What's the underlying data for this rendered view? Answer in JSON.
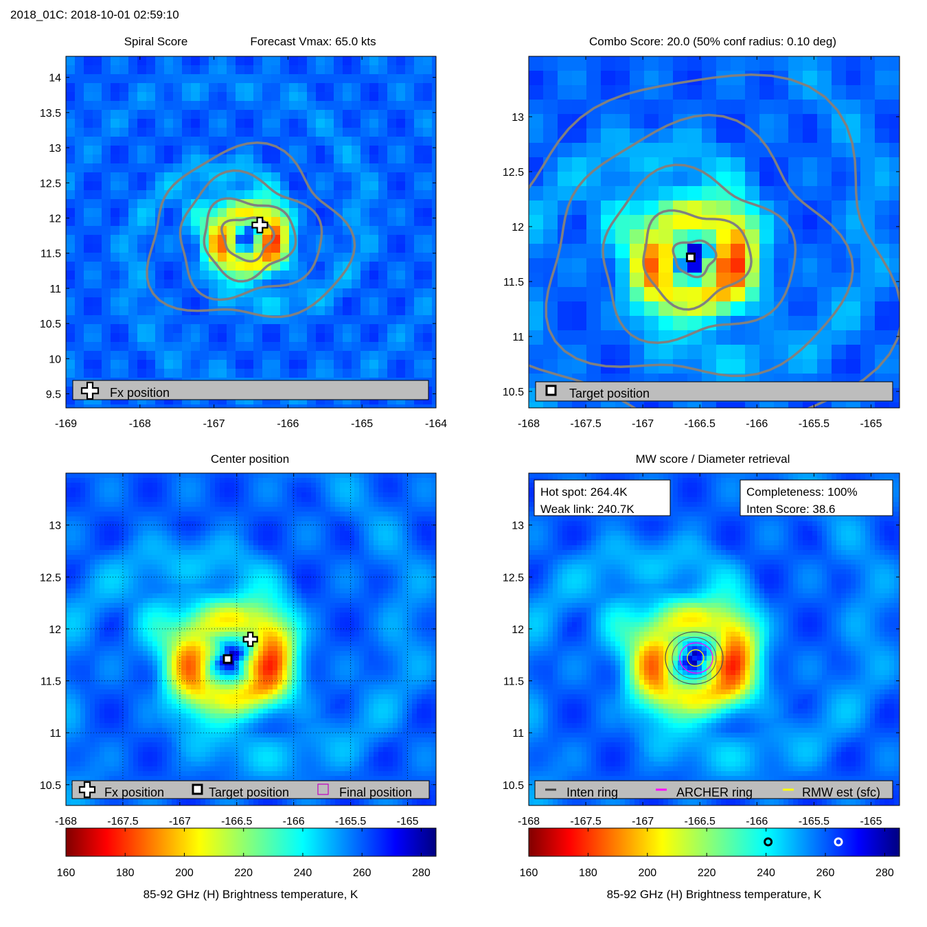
{
  "header": {
    "storm_time": "2018_01C: 2018-10-01 02:59:10"
  },
  "colorbar": {
    "colormap": "jet_reversed",
    "label": "85-92 GHz (H) Brightness temperature, K",
    "range": [
      160,
      285
    ],
    "ticks": [
      "160",
      "180",
      "200",
      "220",
      "240",
      "260",
      "280"
    ],
    "tick_values": [
      160,
      180,
      200,
      220,
      240,
      260,
      280
    ]
  },
  "panels": {
    "spiral": {
      "title_left": "Spiral Score",
      "title_right": "Forecast Vmax: 65.0 kts",
      "xlim": [
        -169,
        -164
      ],
      "ylim": [
        9.3,
        14.3
      ],
      "xticks": [
        -169,
        -168,
        -167,
        -166,
        -165,
        -164
      ],
      "xtick_labels": [
        "-169",
        "-168",
        "-167",
        "-166",
        "-165",
        "-164"
      ],
      "yticks": [
        9.5,
        10,
        10.5,
        11,
        11.5,
        12,
        12.5,
        13,
        13.5,
        14
      ],
      "ytick_labels": [
        "9.5",
        "10",
        "10.5",
        "11",
        "11.5",
        "12",
        "12.5",
        "13",
        "13.5",
        "14"
      ],
      "legend": [
        "Fx position"
      ],
      "fx_position": {
        "lon": -166.38,
        "lat": 11.9
      }
    },
    "combo": {
      "title": "Combo Score: 20.0  (50% conf radius: 0.10 deg)",
      "xlim": [
        -168,
        -164.75
      ],
      "ylim": [
        10.35,
        13.55
      ],
      "xticks": [
        -168,
        -167.5,
        -167,
        -166.5,
        -166,
        -165.5,
        -165
      ],
      "xtick_labels": [
        "-168",
        "-167.5",
        "-167",
        "-166.5",
        "-166",
        "-165.5",
        "-165"
      ],
      "yticks": [
        10.5,
        11,
        11.5,
        12,
        12.5,
        13
      ],
      "ytick_labels": [
        "10.5",
        "11",
        "11.5",
        "12",
        "12.5",
        "13"
      ],
      "legend": [
        "Target position"
      ],
      "target_position": {
        "lon": -166.58,
        "lat": 11.72
      }
    },
    "center": {
      "title": "Center position",
      "xlim": [
        -168,
        -164.75
      ],
      "ylim": [
        10.3,
        13.5
      ],
      "xticks": [
        -168,
        -167.5,
        -167,
        -166.5,
        -166,
        -165.5,
        -165
      ],
      "xtick_labels": [
        "-168",
        "-167.5",
        "-167",
        "-166.5",
        "-166",
        "-165.5",
        "-165"
      ],
      "yticks": [
        10.5,
        11,
        11.5,
        12,
        12.5,
        13
      ],
      "ytick_labels": [
        "10.5",
        "11",
        "11.5",
        "12",
        "12.5",
        "13"
      ],
      "legend": [
        "Fx position",
        "Target position",
        "Final position"
      ],
      "fx_position": {
        "lon": -166.38,
        "lat": 11.9
      },
      "target_position": {
        "lon": -166.58,
        "lat": 11.71
      }
    },
    "mw": {
      "title": "MW score / Diameter retrieval",
      "xlim": [
        -168,
        -164.75
      ],
      "ylim": [
        10.3,
        13.5
      ],
      "xticks": [
        -168,
        -167.5,
        -167,
        -166.5,
        -166,
        -165.5,
        -165
      ],
      "xtick_labels": [
        "-168",
        "-167.5",
        "-167",
        "-166.5",
        "-166",
        "-165.5",
        "-165"
      ],
      "yticks": [
        10.5,
        11,
        11.5,
        12,
        12.5,
        13
      ],
      "ytick_labels": [
        "10.5",
        "11",
        "11.5",
        "12",
        "12.5",
        "13"
      ],
      "hot_spot": "Hot spot: 264.4K",
      "weak_link": "Weak link: 240.7K",
      "completeness": "Completeness: 100%",
      "inten_score": "Inten Score: 38.6",
      "legend": [
        "Inten ring",
        "ARCHER ring",
        "RMW est (sfc)"
      ],
      "hot_spot_K": 264.4,
      "weak_link_K": 240.7
    }
  },
  "chart_data": {
    "type": "heatmap",
    "title": "2018_01C: 2018-10-01 02:59:10",
    "variable": "85-92 GHz (H) Brightness temperature, K",
    "units": "K",
    "value_range": [
      160,
      285
    ],
    "storm_center_lon": -166.55,
    "storm_center_lat": 11.72,
    "forecast_vmax_kts": 65.0,
    "spiral_score_fx_position": [
      -166.38,
      11.9
    ],
    "combo_score": 20.0,
    "conf_radius_deg": 0.1,
    "target_position": [
      -166.58,
      11.72
    ],
    "hot_spot_K": 264.4,
    "weak_link_K": 240.7,
    "completeness_pct": 100,
    "inten_score": 38.6
  }
}
